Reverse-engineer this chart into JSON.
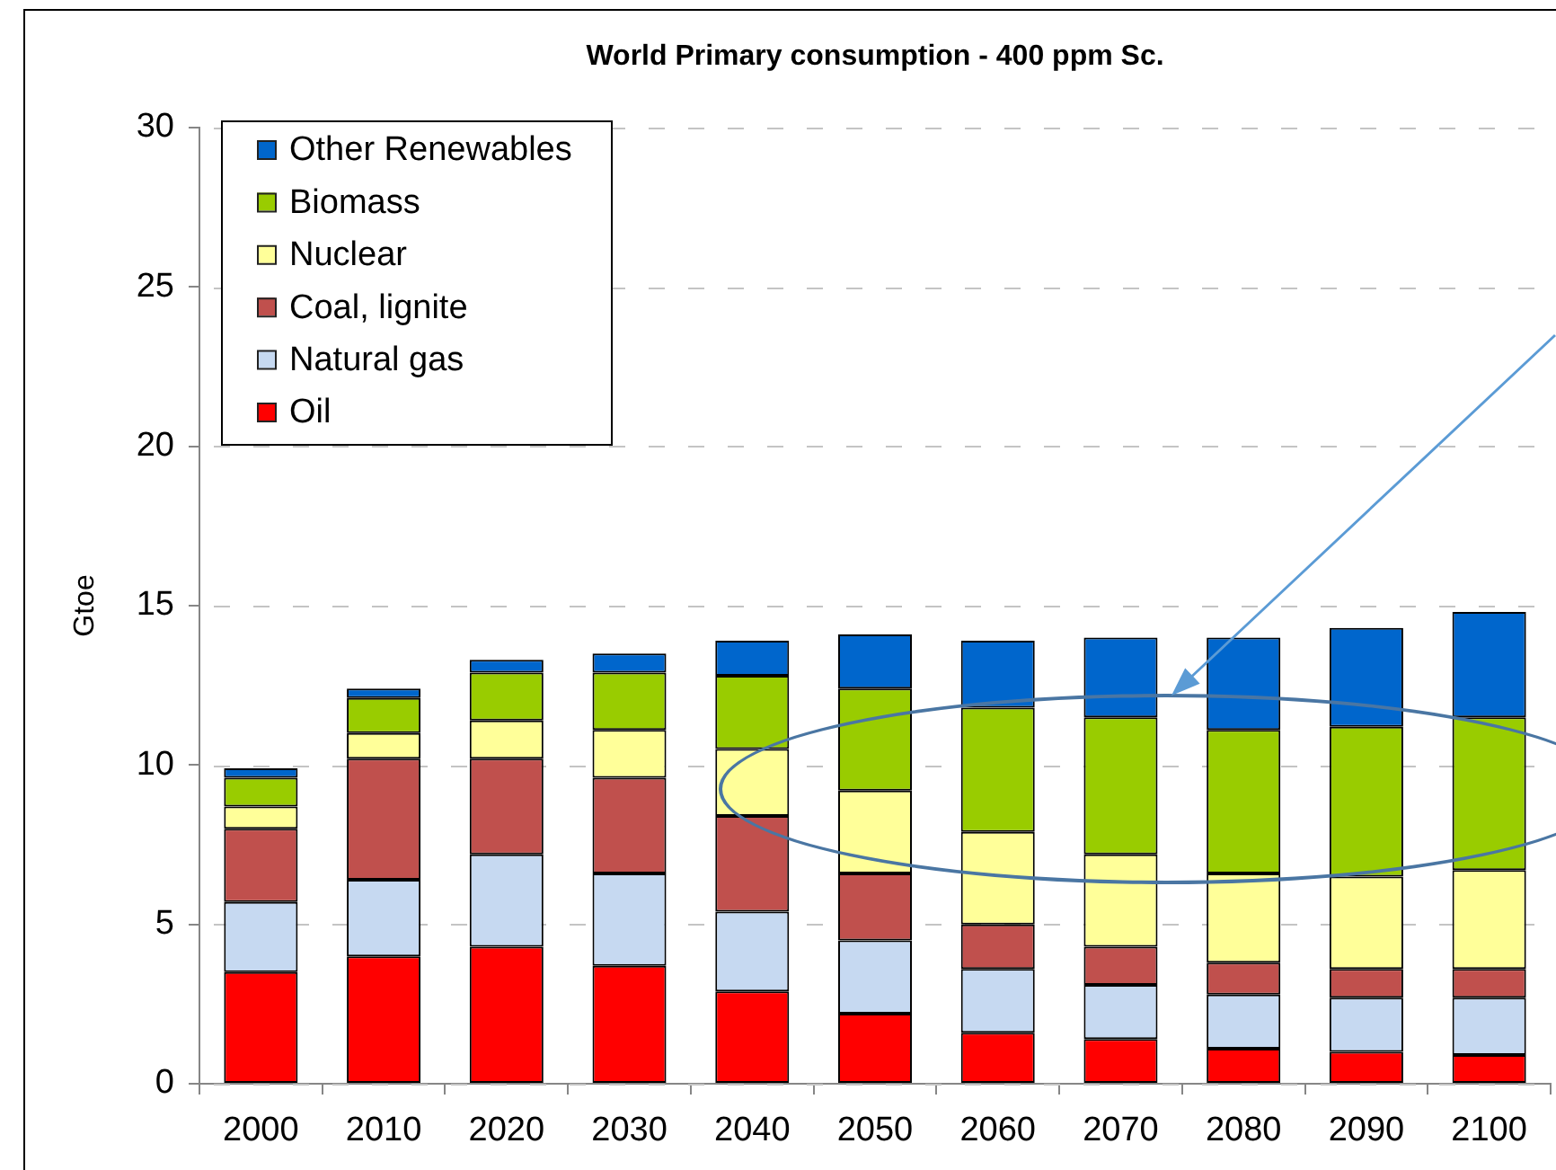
{
  "chart_data": {
    "type": "bar",
    "title": "World Primary consumption - 400 ppm Sc.",
    "ylabel": "Gtoe",
    "categories": [
      "2000",
      "2010",
      "2020",
      "2030",
      "2040",
      "2050",
      "2060",
      "2070",
      "2080",
      "2090",
      "2100"
    ],
    "stacked": true,
    "series": [
      {
        "name": "Oil",
        "color": "#ff0000",
        "values": [
          3.5,
          4.0,
          4.3,
          3.7,
          2.9,
          2.2,
          1.6,
          1.4,
          1.1,
          1.0,
          0.9
        ]
      },
      {
        "name": "Natural gas",
        "color": "#c6d9f1",
        "values": [
          2.2,
          2.4,
          2.9,
          2.9,
          2.5,
          2.3,
          2.0,
          1.7,
          1.7,
          1.7,
          1.8
        ]
      },
      {
        "name": "Coal, lignite",
        "color": "#c0504d",
        "values": [
          2.3,
          3.8,
          3.0,
          3.0,
          3.0,
          2.1,
          1.4,
          1.2,
          1.0,
          0.9,
          0.9
        ]
      },
      {
        "name": "Nuclear",
        "color": "#ffff99",
        "values": [
          0.7,
          0.8,
          1.2,
          1.5,
          2.1,
          2.6,
          2.9,
          2.9,
          2.8,
          2.9,
          3.1
        ]
      },
      {
        "name": "Biomass",
        "color": "#99cc00",
        "values": [
          0.9,
          1.1,
          1.5,
          1.8,
          2.3,
          3.2,
          3.9,
          4.3,
          4.5,
          4.7,
          4.8
        ]
      },
      {
        "name": "Other Renewables",
        "color": "#0066cc",
        "values": [
          0.3,
          0.3,
          0.4,
          0.6,
          1.1,
          1.7,
          2.1,
          2.5,
          2.9,
          3.1,
          3.3
        ]
      }
    ],
    "ylim": [
      0,
      30
    ],
    "yticks": [
      0,
      5,
      10,
      15,
      20,
      25,
      30
    ],
    "grid": "y",
    "legend": "top left"
  }
}
